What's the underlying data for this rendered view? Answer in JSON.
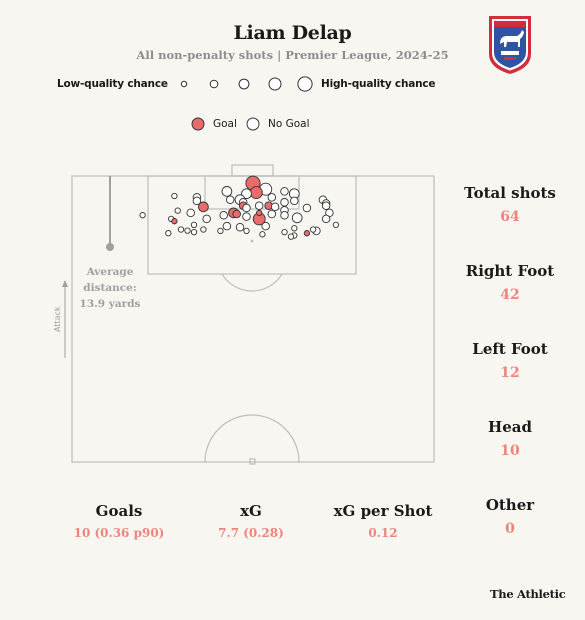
{
  "header": {
    "title": "Liam Delap",
    "subtitle": "All non-penalty shots | Premier League, 2024-25"
  },
  "crest": {
    "text": "IPSWICH TOWN",
    "icon": "ipswich-town-crest-icon",
    "colors": {
      "red": "#d52b3a",
      "blue": "#2f54a3"
    }
  },
  "quality_scale": {
    "low_label": "Low-quality chance",
    "high_label": "High-quality chance",
    "levels": [
      1,
      2,
      3,
      4,
      5
    ]
  },
  "legend": {
    "goal_label": "Goal",
    "no_goal_label": "No Goal",
    "goal_color": "#eb6b6b"
  },
  "average_distance": {
    "label": "Average distance:",
    "value": "13.9 yards",
    "label_line1": "Average",
    "label_line2": "distance:"
  },
  "attack_label": "Attack",
  "side_stats": [
    {
      "label": "Total shots",
      "value": "64"
    },
    {
      "label": "Right Foot",
      "value": "42"
    },
    {
      "label": "Left Foot",
      "value": "12"
    },
    {
      "label": "Head",
      "value": "10"
    },
    {
      "label": "Other",
      "value": "0"
    }
  ],
  "bottom_stats": [
    {
      "label": "Goals",
      "value": "10 (0.36 p90)"
    },
    {
      "label": "xG",
      "value": "7.7 (0.28)"
    },
    {
      "label": "xG per Shot",
      "value": "0.12"
    }
  ],
  "brand": "The Athletic",
  "chart_data": {
    "type": "scatter",
    "x_range": [
      0,
      100
    ],
    "y_range": [
      0,
      100
    ],
    "points": [
      {
        "x": 50.0,
        "y": 97.5,
        "size": 5,
        "goal": true
      },
      {
        "x": 53.5,
        "y": 95.4,
        "size": 4,
        "goal": false
      },
      {
        "x": 42.8,
        "y": 94.6,
        "size": 3,
        "goal": false
      },
      {
        "x": 50.9,
        "y": 94.2,
        "size": 4,
        "goal": true
      },
      {
        "x": 58.7,
        "y": 94.6,
        "size": 2,
        "goal": false
      },
      {
        "x": 61.4,
        "y": 93.8,
        "size": 3,
        "goal": false
      },
      {
        "x": 48.2,
        "y": 93.8,
        "size": 3,
        "goal": false
      },
      {
        "x": 55.2,
        "y": 92.5,
        "size": 2,
        "goal": false
      },
      {
        "x": 34.5,
        "y": 92.5,
        "size": 2,
        "goal": false
      },
      {
        "x": 46.4,
        "y": 91.7,
        "size": 3,
        "goal": false
      },
      {
        "x": 43.7,
        "y": 91.7,
        "size": 2,
        "goal": false
      },
      {
        "x": 47.3,
        "y": 90.8,
        "size": 2,
        "goal": false
      },
      {
        "x": 58.7,
        "y": 90.8,
        "size": 2,
        "goal": false
      },
      {
        "x": 61.4,
        "y": 91.3,
        "size": 2,
        "goal": false
      },
      {
        "x": 69.3,
        "y": 91.7,
        "size": 2,
        "goal": false
      },
      {
        "x": 70.2,
        "y": 90.4,
        "size": 2,
        "goal": false
      },
      {
        "x": 28.3,
        "y": 93.0,
        "size": 1,
        "goal": false
      },
      {
        "x": 34.5,
        "y": 91.3,
        "size": 2,
        "goal": false
      },
      {
        "x": 36.3,
        "y": 89.2,
        "size": 3,
        "goal": true
      },
      {
        "x": 47.3,
        "y": 89.6,
        "size": 2,
        "goal": true
      },
      {
        "x": 51.7,
        "y": 89.6,
        "size": 2,
        "goal": false
      },
      {
        "x": 54.3,
        "y": 89.6,
        "size": 2,
        "goal": true
      },
      {
        "x": 56.1,
        "y": 89.2,
        "size": 2,
        "goal": false
      },
      {
        "x": 70.2,
        "y": 89.6,
        "size": 2,
        "goal": false
      },
      {
        "x": 48.2,
        "y": 88.8,
        "size": 2,
        "goal": false
      },
      {
        "x": 58.7,
        "y": 88.0,
        "size": 2,
        "goal": false
      },
      {
        "x": 29.2,
        "y": 87.9,
        "size": 1,
        "goal": false
      },
      {
        "x": 32.8,
        "y": 87.1,
        "size": 2,
        "goal": false
      },
      {
        "x": 44.6,
        "y": 87.1,
        "size": 3,
        "goal": true
      },
      {
        "x": 51.7,
        "y": 87.1,
        "size": 1,
        "goal": true
      },
      {
        "x": 45.5,
        "y": 86.7,
        "size": 2,
        "goal": true
      },
      {
        "x": 64.9,
        "y": 88.8,
        "size": 2,
        "goal": false
      },
      {
        "x": 71.1,
        "y": 87.1,
        "size": 2,
        "goal": false
      },
      {
        "x": 19.5,
        "y": 86.3,
        "size": 1,
        "goal": false
      },
      {
        "x": 41.9,
        "y": 86.3,
        "size": 2,
        "goal": false
      },
      {
        "x": 48.2,
        "y": 85.8,
        "size": 2,
        "goal": false
      },
      {
        "x": 55.2,
        "y": 86.7,
        "size": 2,
        "goal": false
      },
      {
        "x": 58.7,
        "y": 86.3,
        "size": 2,
        "goal": false
      },
      {
        "x": 51.7,
        "y": 85.0,
        "size": 4,
        "goal": true
      },
      {
        "x": 62.2,
        "y": 85.4,
        "size": 3,
        "goal": false
      },
      {
        "x": 70.2,
        "y": 85.0,
        "size": 2,
        "goal": false
      },
      {
        "x": 27.4,
        "y": 85.0,
        "size": 1,
        "goal": false
      },
      {
        "x": 28.3,
        "y": 84.2,
        "size": 1,
        "goal": true
      },
      {
        "x": 37.2,
        "y": 85.0,
        "size": 2,
        "goal": false
      },
      {
        "x": 42.8,
        "y": 82.5,
        "size": 2,
        "goal": false
      },
      {
        "x": 46.4,
        "y": 82.1,
        "size": 2,
        "goal": false
      },
      {
        "x": 33.7,
        "y": 82.9,
        "size": 1,
        "goal": false
      },
      {
        "x": 53.5,
        "y": 82.5,
        "size": 2,
        "goal": false
      },
      {
        "x": 61.4,
        "y": 81.7,
        "size": 1,
        "goal": false
      },
      {
        "x": 72.9,
        "y": 82.9,
        "size": 1,
        "goal": false
      },
      {
        "x": 30.1,
        "y": 81.3,
        "size": 1,
        "goal": false
      },
      {
        "x": 31.9,
        "y": 80.9,
        "size": 1,
        "goal": false
      },
      {
        "x": 36.3,
        "y": 81.3,
        "size": 1,
        "goal": false
      },
      {
        "x": 48.2,
        "y": 80.8,
        "size": 1,
        "goal": false
      },
      {
        "x": 66.6,
        "y": 81.3,
        "size": 1,
        "goal": false
      },
      {
        "x": 67.5,
        "y": 80.8,
        "size": 2,
        "goal": false
      },
      {
        "x": 58.7,
        "y": 80.4,
        "size": 1,
        "goal": false
      },
      {
        "x": 64.9,
        "y": 80.0,
        "size": 1,
        "goal": true
      },
      {
        "x": 26.6,
        "y": 80.0,
        "size": 1,
        "goal": false
      },
      {
        "x": 33.7,
        "y": 80.4,
        "size": 1,
        "goal": false
      },
      {
        "x": 41.0,
        "y": 80.8,
        "size": 1,
        "goal": false
      },
      {
        "x": 52.6,
        "y": 79.6,
        "size": 1,
        "goal": false
      },
      {
        "x": 61.4,
        "y": 79.2,
        "size": 1,
        "goal": false
      },
      {
        "x": 60.5,
        "y": 78.8,
        "size": 1,
        "goal": false
      }
    ]
  }
}
